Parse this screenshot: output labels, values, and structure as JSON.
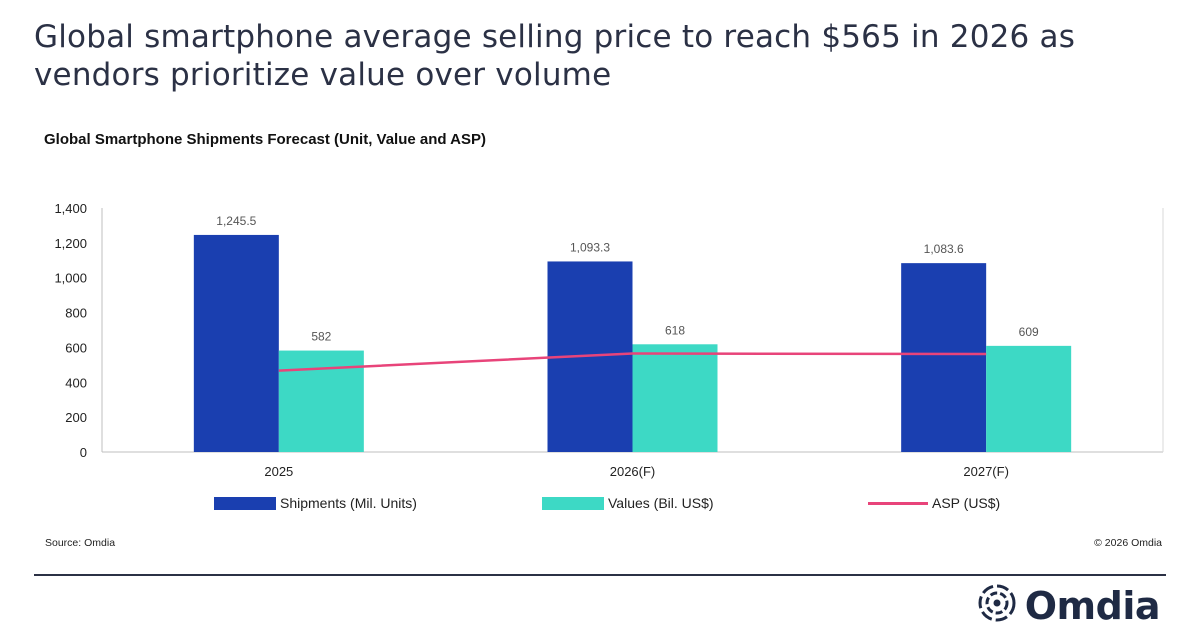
{
  "headline": "Global smartphone average selling price to reach $565 in 2026 as vendors prioritize value over volume",
  "chart_data": {
    "type": "bar",
    "title": "Global Smartphone Shipments Forecast (Unit, Value and ASP)",
    "categories": [
      "2025",
      "2026(F)",
      "2027(F)"
    ],
    "ylim": [
      0,
      1400
    ],
    "yticks": [
      "1,400",
      "1,200",
      "1,000",
      "800",
      "600",
      "400",
      "200",
      "0"
    ],
    "ytick_values": [
      1400,
      1200,
      1000,
      800,
      600,
      400,
      200,
      0
    ],
    "grid": false,
    "legend_position": "bottom",
    "series": [
      {
        "name": "Shipments (Mil. Units)",
        "type": "bar",
        "color": "#1a3fb0",
        "values": [
          1245.5,
          1093.3,
          1083.6
        ],
        "labels": [
          "1,245.5",
          "1,093.3",
          "1,083.6"
        ]
      },
      {
        "name": "Values (Bil. US$)",
        "type": "bar",
        "color": "#3dd9c5",
        "values": [
          582,
          618,
          609
        ],
        "labels": [
          "582",
          "618",
          "609"
        ]
      },
      {
        "name": "ASP (US$)",
        "type": "line",
        "color": "#e8447a",
        "values": [
          467,
          565,
          562
        ]
      }
    ]
  },
  "footer": {
    "source": "Source: Omdia",
    "copyright": "© 2026 Omdia",
    "brand": "Omdia"
  }
}
